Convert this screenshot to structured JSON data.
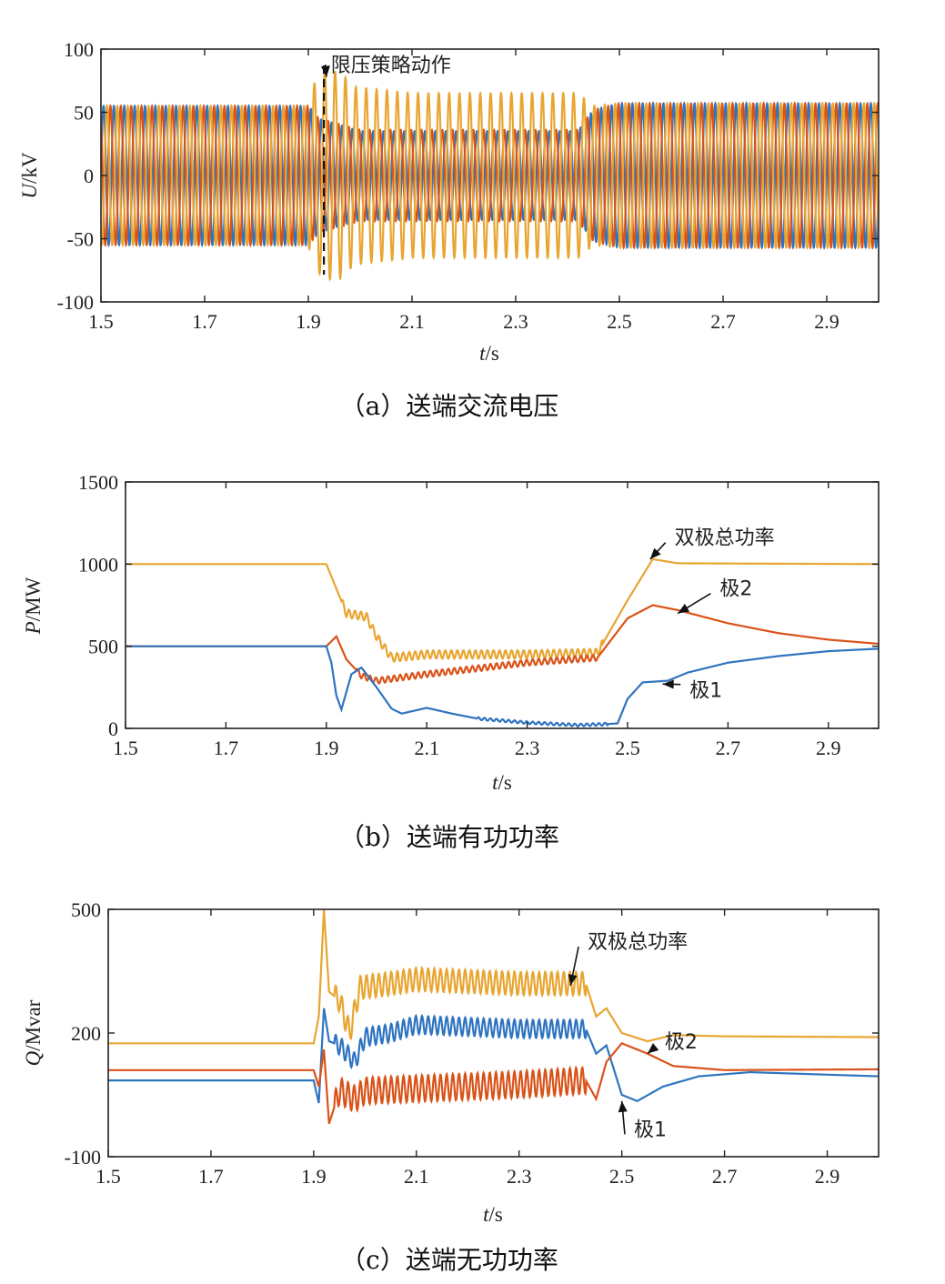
{
  "colors": {
    "pole1": "#2f74c0",
    "pole2": "#d95319",
    "total": "#e8a531",
    "axis": "#222222"
  },
  "chart_data": [
    {
      "id": "a",
      "type": "line",
      "caption": "（a）送端交流电压",
      "ylabel_var": "U",
      "ylabel_unit": "/kV",
      "xlabel_var": "t",
      "xlabel_unit": "/s",
      "xlim": [
        1.5,
        3.0
      ],
      "ylim": [
        -100,
        100
      ],
      "xticks": [
        "1.5",
        "1.7",
        "1.9",
        "2.1",
        "2.3",
        "2.5",
        "2.7",
        "2.9"
      ],
      "yticks": [
        "100",
        "50",
        "0",
        "-50",
        "-100"
      ],
      "series": [
        {
          "color_key": "pole1",
          "kind": "ac",
          "envelope": [
            [
              1.5,
              55
            ],
            [
              1.9,
              55
            ],
            [
              1.92,
              45
            ],
            [
              2.0,
              35
            ],
            [
              2.42,
              35
            ],
            [
              2.45,
              52
            ],
            [
              2.5,
              57
            ],
            [
              3.0,
              57
            ]
          ]
        },
        {
          "color_key": "pole2",
          "kind": "ac",
          "envelope": [
            [
              1.5,
              55
            ],
            [
              1.9,
              55
            ],
            [
              1.92,
              45
            ],
            [
              2.0,
              36
            ],
            [
              2.42,
              36
            ],
            [
              2.45,
              52
            ],
            [
              2.5,
              57
            ],
            [
              3.0,
              57
            ]
          ]
        },
        {
          "color_key": "total",
          "kind": "ac",
          "envelope": [
            [
              1.5,
              55
            ],
            [
              1.9,
              55
            ],
            [
              1.91,
              72
            ],
            [
              1.93,
              82
            ],
            [
              1.96,
              82
            ],
            [
              1.99,
              70
            ],
            [
              2.1,
              65
            ],
            [
              2.42,
              65
            ],
            [
              2.45,
              55
            ],
            [
              2.5,
              57
            ],
            [
              3.0,
              57
            ]
          ]
        }
      ],
      "vline_x": 1.93,
      "annotations": [
        {
          "text": "限压策略动作",
          "x": 1.94,
          "y": 82
        }
      ]
    },
    {
      "id": "b",
      "type": "line",
      "caption": "（b）送端有功功率",
      "ylabel_var": "P",
      "ylabel_unit": "/MW",
      "xlabel_var": "t",
      "xlabel_unit": "/s",
      "xlim": [
        1.5,
        3.0
      ],
      "ylim": [
        0,
        1500
      ],
      "xticks": [
        "1.5",
        "1.7",
        "1.9",
        "2.1",
        "2.3",
        "2.5",
        "2.7",
        "2.9"
      ],
      "yticks": [
        "1500",
        "1000",
        "500",
        "0"
      ],
      "series": [
        {
          "color_key": "total",
          "points": [
            [
              1.5,
              1000
            ],
            [
              1.9,
              1000
            ],
            [
              1.92,
              850
            ],
            [
              1.94,
              700
            ],
            [
              1.98,
              680
            ],
            [
              2.0,
              560
            ],
            [
              2.03,
              430
            ],
            [
              2.1,
              450
            ],
            [
              2.3,
              450
            ],
            [
              2.44,
              460
            ],
            [
              2.5,
              780
            ],
            [
              2.55,
              1030
            ],
            [
              2.6,
              1005
            ],
            [
              3.0,
              1000
            ]
          ],
          "ripple": {
            "from": 1.93,
            "to": 2.45,
            "amp": 25,
            "period": 0.012
          }
        },
        {
          "color_key": "pole2",
          "points": [
            [
              1.5,
              500
            ],
            [
              1.9,
              500
            ],
            [
              1.92,
              560
            ],
            [
              1.94,
              420
            ],
            [
              1.97,
              320
            ],
            [
              2.0,
              290
            ],
            [
              2.1,
              330
            ],
            [
              2.3,
              400
            ],
            [
              2.44,
              430
            ],
            [
              2.5,
              670
            ],
            [
              2.55,
              750
            ],
            [
              2.6,
              720
            ],
            [
              2.7,
              640
            ],
            [
              2.8,
              580
            ],
            [
              2.9,
              540
            ],
            [
              3.0,
              515
            ]
          ],
          "ripple": {
            "from": 1.96,
            "to": 2.44,
            "amp": 18,
            "period": 0.012
          }
        },
        {
          "color_key": "pole1",
          "points": [
            [
              1.5,
              500
            ],
            [
              1.9,
              500
            ],
            [
              1.91,
              400
            ],
            [
              1.92,
              200
            ],
            [
              1.93,
              115
            ],
            [
              1.95,
              330
            ],
            [
              1.97,
              370
            ],
            [
              2.0,
              250
            ],
            [
              2.03,
              120
            ],
            [
              2.05,
              90
            ],
            [
              2.1,
              125
            ],
            [
              2.15,
              90
            ],
            [
              2.2,
              60
            ],
            [
              2.3,
              35
            ],
            [
              2.4,
              20
            ],
            [
              2.45,
              25
            ],
            [
              2.48,
              30
            ],
            [
              2.5,
              180
            ],
            [
              2.53,
              280
            ],
            [
              2.58,
              290
            ],
            [
              2.62,
              340
            ],
            [
              2.7,
              400
            ],
            [
              2.8,
              440
            ],
            [
              2.9,
              470
            ],
            [
              3.0,
              485
            ]
          ],
          "ripple": {
            "from": 2.2,
            "to": 2.46,
            "amp": 8,
            "period": 0.012
          }
        }
      ],
      "annotations": [
        {
          "text": "双极总功率",
          "x": 2.59,
          "y": 1120
        },
        {
          "text": "极2",
          "x": 2.68,
          "y": 810
        },
        {
          "text": "极1",
          "x": 2.62,
          "y": 190
        }
      ]
    },
    {
      "id": "c",
      "type": "line",
      "caption": "（c）送端无功功率",
      "ylabel_var": "Q",
      "ylabel_unit": "/Mvar",
      "xlabel_var": "t",
      "xlabel_unit": "/s",
      "xlim": [
        1.5,
        3.0
      ],
      "ylim": [
        -100,
        500
      ],
      "ytick_values": [
        500,
        200,
        -100
      ],
      "xticks": [
        "1.5",
        "1.7",
        "1.9",
        "2.1",
        "2.3",
        "2.5",
        "2.7",
        "2.9"
      ],
      "yticks": [
        "500",
        "200",
        "-100"
      ],
      "series": [
        {
          "color_key": "total",
          "points": [
            [
              1.5,
              175
            ],
            [
              1.9,
              175
            ],
            [
              1.91,
              240
            ],
            [
              1.92,
              500
            ],
            [
              1.93,
              300
            ],
            [
              1.95,
              280
            ],
            [
              1.97,
              200
            ],
            [
              1.99,
              310
            ],
            [
              2.05,
              320
            ],
            [
              2.1,
              330
            ],
            [
              2.3,
              320
            ],
            [
              2.43,
              320
            ],
            [
              2.45,
              240
            ],
            [
              2.47,
              260
            ],
            [
              2.5,
              200
            ],
            [
              2.55,
              180
            ],
            [
              2.6,
              195
            ],
            [
              2.7,
              192
            ],
            [
              3.0,
              190
            ]
          ],
          "ripple": {
            "from": 1.94,
            "to": 2.43,
            "amp": 28,
            "period": 0.012
          }
        },
        {
          "color_key": "pole1",
          "points": [
            [
              1.5,
              85
            ],
            [
              1.9,
              85
            ],
            [
              1.91,
              30
            ],
            [
              1.92,
              260
            ],
            [
              1.93,
              180
            ],
            [
              1.95,
              170
            ],
            [
              1.98,
              130
            ],
            [
              2.0,
              190
            ],
            [
              2.05,
              200
            ],
            [
              2.1,
              220
            ],
            [
              2.3,
              210
            ],
            [
              2.43,
              210
            ],
            [
              2.45,
              150
            ],
            [
              2.47,
              170
            ],
            [
              2.5,
              50
            ],
            [
              2.53,
              35
            ],
            [
              2.58,
              70
            ],
            [
              2.65,
              95
            ],
            [
              2.75,
              105
            ],
            [
              3.0,
              95
            ]
          ],
          "ripple": {
            "from": 1.94,
            "to": 2.43,
            "amp": 22,
            "period": 0.012
          }
        },
        {
          "color_key": "pole2",
          "points": [
            [
              1.5,
              110
            ],
            [
              1.9,
              110
            ],
            [
              1.91,
              70
            ],
            [
              1.92,
              160
            ],
            [
              1.93,
              -20
            ],
            [
              1.95,
              60
            ],
            [
              1.98,
              40
            ],
            [
              2.0,
              60
            ],
            [
              2.1,
              65
            ],
            [
              2.3,
              75
            ],
            [
              2.43,
              85
            ],
            [
              2.45,
              40
            ],
            [
              2.47,
              130
            ],
            [
              2.5,
              175
            ],
            [
              2.55,
              150
            ],
            [
              2.6,
              120
            ],
            [
              2.7,
              110
            ],
            [
              3.0,
              112
            ]
          ],
          "ripple": {
            "from": 1.94,
            "to": 2.43,
            "amp": 32,
            "period": 0.012
          }
        }
      ],
      "annotations": [
        {
          "text": "双极总功率",
          "x": 2.43,
          "y": 405
        },
        {
          "text": "极2",
          "x": 2.58,
          "y": 162
        },
        {
          "text": "极1",
          "x": 2.52,
          "y": -50
        }
      ]
    }
  ]
}
